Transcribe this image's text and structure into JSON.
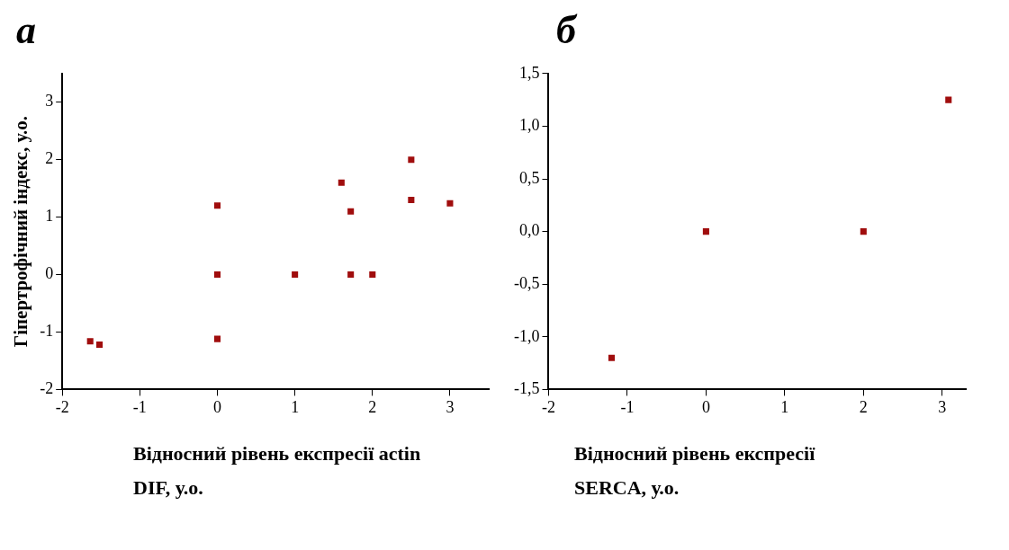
{
  "chart_data": [
    {
      "type": "scatter",
      "title": "а",
      "xlabel": "Відносний рівень експресії actin DIF, у.о.",
      "ylabel": "Гіпертрофічний індекс, у.о.",
      "xlim": [
        -2,
        3.5
      ],
      "xticks": [
        -2,
        -1,
        0,
        1,
        2,
        3
      ],
      "ylim": [
        -2,
        3.5
      ],
      "yticks": [
        -2,
        -1,
        0,
        1,
        2,
        3
      ],
      "grid": false,
      "legend": false,
      "marker": "square",
      "series": [
        {
          "color": "#a00d0d",
          "x": [
            -1.64,
            -1.52,
            0,
            0,
            0,
            1,
            1.6,
            1.72,
            1.72,
            2,
            2.5,
            2.5,
            3
          ],
          "values": [
            -1.16,
            -1.22,
            1.2,
            0,
            -1.12,
            0,
            1.6,
            1.1,
            0,
            0,
            2,
            1.3,
            1.24
          ]
        }
      ]
    },
    {
      "type": "scatter",
      "title": "б",
      "xlabel": "Відносний рівень експресії SERCA, у.о.",
      "xlim": [
        -2,
        3.3
      ],
      "xticks": [
        -2,
        -1,
        0,
        1,
        2,
        3
      ],
      "ylim": [
        -1.5,
        1.5
      ],
      "yticks": [
        {
          "value": -1.5,
          "label": "-1,5"
        },
        {
          "value": -1,
          "label": "-1,0"
        },
        {
          "value": -0.5,
          "label": "-0,5"
        },
        {
          "value": 0,
          "label": "0,0"
        },
        {
          "value": 0.5,
          "label": "0,5"
        },
        {
          "value": 1,
          "label": "1,0"
        },
        {
          "value": 1.5,
          "label": "1,5"
        }
      ],
      "grid": false,
      "legend": false,
      "marker": "square",
      "series": [
        {
          "color": "#a00d0d",
          "x": [
            -1.2,
            0,
            2,
            3.08
          ],
          "values": [
            -1.2,
            0,
            0,
            1.25
          ]
        }
      ]
    }
  ]
}
